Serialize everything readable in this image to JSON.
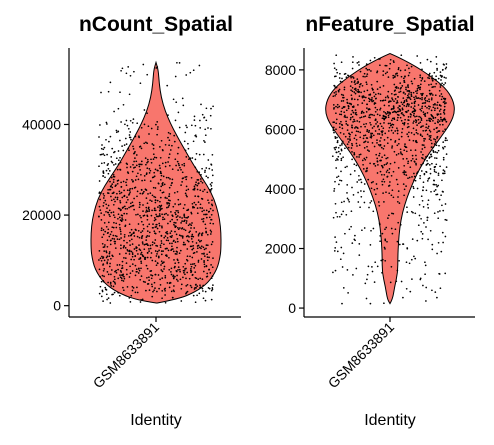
{
  "chart_data": [
    {
      "type": "violin",
      "title": "nCount_Spatial",
      "xlabel": "Identity",
      "ylabel": "",
      "categories": [
        "GSM8633891"
      ],
      "ylim": [
        -2500,
        56000
      ],
      "yticks": [
        0,
        20000,
        40000
      ],
      "ytick_labels": [
        "0",
        "20000",
        "40000"
      ],
      "fill_color": "#F8766D",
      "point_color": "#000000",
      "grid": false,
      "legend": "none",
      "density_profile": [
        {
          "y": 600,
          "w": 0.02
        },
        {
          "y": 1500,
          "w": 0.35
        },
        {
          "y": 3000,
          "w": 0.6
        },
        {
          "y": 5000,
          "w": 0.8
        },
        {
          "y": 8000,
          "w": 0.94
        },
        {
          "y": 11000,
          "w": 0.99
        },
        {
          "y": 13000,
          "w": 1.0
        },
        {
          "y": 16000,
          "w": 1.0
        },
        {
          "y": 19000,
          "w": 0.98
        },
        {
          "y": 22000,
          "w": 0.93
        },
        {
          "y": 25000,
          "w": 0.85
        },
        {
          "y": 28000,
          "w": 0.72
        },
        {
          "y": 31000,
          "w": 0.58
        },
        {
          "y": 34000,
          "w": 0.46
        },
        {
          "y": 37000,
          "w": 0.34
        },
        {
          "y": 40000,
          "w": 0.23
        },
        {
          "y": 43000,
          "w": 0.14
        },
        {
          "y": 46000,
          "w": 0.08
        },
        {
          "y": 49000,
          "w": 0.05
        },
        {
          "y": 52000,
          "w": 0.035
        },
        {
          "y": 53700,
          "w": 0.0
        }
      ],
      "points": {
        "n": 1300,
        "y_min": 600,
        "y_max": 53700,
        "seed": 11
      }
    },
    {
      "type": "violin",
      "title": "nFeature_Spatial",
      "xlabel": "Identity",
      "ylabel": "",
      "categories": [
        "GSM8633891"
      ],
      "ylim": [
        -300,
        8600
      ],
      "yticks": [
        0,
        2000,
        4000,
        6000,
        8000
      ],
      "ytick_labels": [
        "0",
        "2000",
        "4000",
        "6000",
        "8000"
      ],
      "fill_color": "#F8766D",
      "point_color": "#000000",
      "grid": false,
      "legend": "none",
      "density_profile": [
        {
          "y": 150,
          "w": 0.0
        },
        {
          "y": 300,
          "w": 0.04
        },
        {
          "y": 700,
          "w": 0.07
        },
        {
          "y": 1200,
          "w": 0.12
        },
        {
          "y": 1700,
          "w": 0.12
        },
        {
          "y": 2200,
          "w": 0.13
        },
        {
          "y": 2700,
          "w": 0.15
        },
        {
          "y": 3200,
          "w": 0.19
        },
        {
          "y": 3700,
          "w": 0.26
        },
        {
          "y": 4200,
          "w": 0.35
        },
        {
          "y": 4700,
          "w": 0.46
        },
        {
          "y": 5200,
          "w": 0.6
        },
        {
          "y": 5700,
          "w": 0.77
        },
        {
          "y": 6200,
          "w": 0.93
        },
        {
          "y": 6600,
          "w": 1.0
        },
        {
          "y": 7000,
          "w": 0.97
        },
        {
          "y": 7400,
          "w": 0.85
        },
        {
          "y": 7800,
          "w": 0.62
        },
        {
          "y": 8150,
          "w": 0.37
        },
        {
          "y": 8400,
          "w": 0.15
        },
        {
          "y": 8550,
          "w": 0.0
        }
      ],
      "points": {
        "n": 1300,
        "y_min": 150,
        "y_max": 8550,
        "seed": 29
      }
    }
  ]
}
